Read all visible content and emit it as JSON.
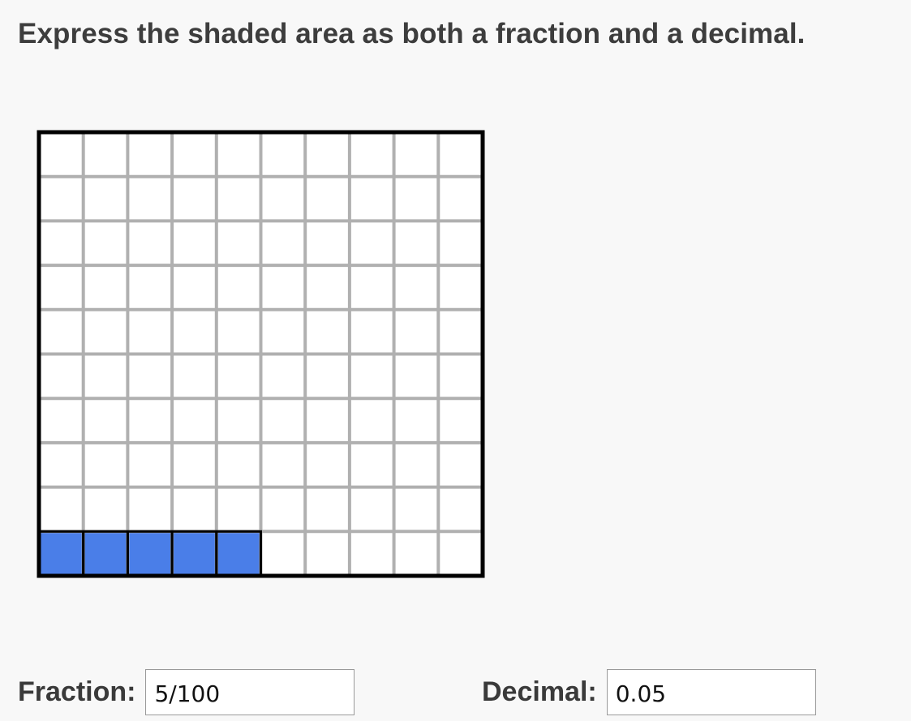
{
  "question": {
    "prompt": "Express the shaded area as both a fraction and a decimal."
  },
  "grid_model": {
    "rows": 10,
    "columns": 10,
    "shaded_cells": 5,
    "shaded_row": "bottom",
    "shaded_from": "left",
    "colors": {
      "shaded": "#4a7ee8",
      "unshaded": "#ffffff",
      "grid_line": "#b0b0b0",
      "border": "#000000"
    }
  },
  "answers": {
    "fraction_label": "Fraction:",
    "fraction_value": "5/100",
    "decimal_label": "Decimal:",
    "decimal_value": "0.05"
  }
}
